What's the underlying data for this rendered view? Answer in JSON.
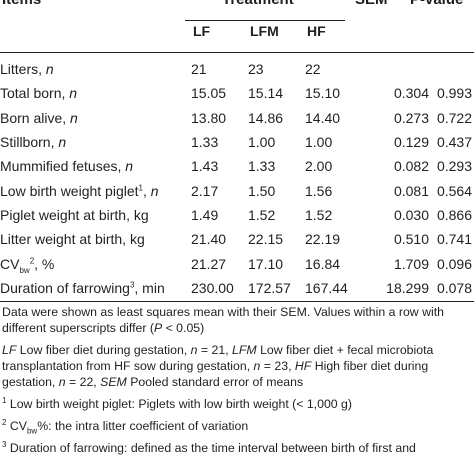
{
  "header": {
    "items_label": "Items",
    "treatment_label": "Treatment",
    "sem_label": "SEM",
    "pvalue_label": "P-value",
    "columns": [
      "LF",
      "LFM",
      "HF"
    ]
  },
  "rows": [
    {
      "label": "Litters, ",
      "unit": "n",
      "sup": "",
      "lf": "21",
      "lfm": "23",
      "hf": "22",
      "sem": "",
      "p": ""
    },
    {
      "label": "Total born, ",
      "unit": "n",
      "sup": "",
      "lf": "15.05",
      "lfm": "15.14",
      "hf": "15.10",
      "sem": "0.304",
      "p": "0.993"
    },
    {
      "label": "Born alive, ",
      "unit": "n",
      "sup": "",
      "lf": "13.80",
      "lfm": "14.86",
      "hf": "14.40",
      "sem": "0.273",
      "p": "0.722"
    },
    {
      "label": "Stillborn, ",
      "unit": "n",
      "sup": "",
      "lf": "1.33",
      "lfm": "1.00",
      "hf": "1.00",
      "sem": "0.129",
      "p": "0.437"
    },
    {
      "label": "Mummified fetuses, ",
      "unit": "n",
      "sup": "",
      "lf": "1.43",
      "lfm": "1.33",
      "hf": "2.00",
      "sem": "0.082",
      "p": "0.293"
    },
    {
      "label": "Low birth weight piglet",
      "unit": "n",
      "sup": "1",
      "lf": "2.17",
      "lfm": "1.50",
      "hf": "1.56",
      "sem": "0.081",
      "p": "0.564"
    },
    {
      "label": "Piglet weight at birth, kg",
      "unit": "",
      "sup": "",
      "lf": "1.49",
      "lfm": "1.52",
      "hf": "1.52",
      "sem": "0.030",
      "p": "0.866"
    },
    {
      "label": "Litter weight at birth, kg",
      "unit": "",
      "sup": "",
      "lf": "21.40",
      "lfm": "22.15",
      "hf": "22.19",
      "sem": "0.510",
      "p": "0.741"
    },
    {
      "label": "CV",
      "unit": "",
      "sub": "bw",
      "sup": "2",
      "suffix": ", %",
      "lf": "21.27",
      "lfm": "17.10",
      "hf": "16.84",
      "sem": "1.709",
      "p": "0.096"
    },
    {
      "label": "Duration of farrowing",
      "unit": "",
      "sup": "3",
      "suffix": ", min",
      "lf": "230.00",
      "lfm": "172.57",
      "hf": "167.44",
      "sem": "18.299",
      "p": "0.078"
    }
  ],
  "notes": {
    "n1_pre": "Data were shown as least squares mean with their SEM. Values within a row with different superscripts differ (",
    "n1_p": "P",
    "n1_post": " < 0.05)",
    "n2_lf": "LF",
    "n2_a": " Low fiber diet during gestation, ",
    "n2_n1": "n",
    "n2_b": " = 21, ",
    "n2_lfm": "LFM",
    "n2_c": " Low fiber diet + fecal microbiota transplantation from HF sow during gestation, ",
    "n2_n2": "n",
    "n2_d": " = 23, ",
    "n2_hf": "HF",
    "n2_e": " High fiber diet during gestation, ",
    "n2_n3": "n",
    "n2_f": " = 22, ",
    "n2_sem": "SEM",
    "n2_g": " Pooled standard error of means",
    "f1_sup": "1",
    "f1_text": " Low birth weight piglet: Piglets with low birth weight (< 1,000 g)",
    "f2_sup": "2",
    "f2_cv": " CV",
    "f2_sub": "bw",
    "f2_text": "%: the intra litter coefficient of variation",
    "f3_sup": "3",
    "f3_text": " Duration of farrowing: defined as the time interval between birth of first and"
  }
}
